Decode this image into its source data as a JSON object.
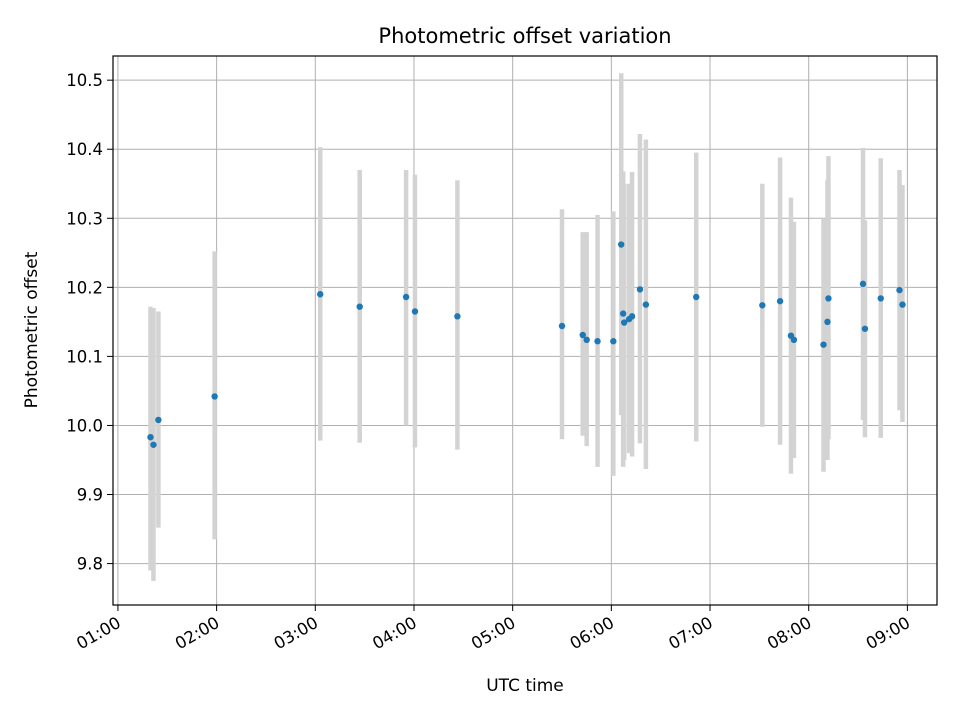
{
  "chart_data": {
    "type": "scatter",
    "title": "Photometric offset variation",
    "xlabel": "UTC time",
    "ylabel": "Photometric offset",
    "x_unit": "hours UTC",
    "xlim": [
      0.95,
      9.3
    ],
    "ylim": [
      9.74,
      10.535
    ],
    "x_ticks": [
      {
        "value": 1,
        "label": "01:00"
      },
      {
        "value": 2,
        "label": "02:00"
      },
      {
        "value": 3,
        "label": "03:00"
      },
      {
        "value": 4,
        "label": "04:00"
      },
      {
        "value": 5,
        "label": "05:00"
      },
      {
        "value": 6,
        "label": "06:00"
      },
      {
        "value": 7,
        "label": "07:00"
      },
      {
        "value": 8,
        "label": "08:00"
      },
      {
        "value": 9,
        "label": "09:00"
      }
    ],
    "y_ticks": [
      {
        "value": 9.8,
        "label": "9.8"
      },
      {
        "value": 9.9,
        "label": "9.9"
      },
      {
        "value": 10.0,
        "label": "10.0"
      },
      {
        "value": 10.1,
        "label": "10.1"
      },
      {
        "value": 10.2,
        "label": "10.2"
      },
      {
        "value": 10.3,
        "label": "10.3"
      },
      {
        "value": 10.4,
        "label": "10.4"
      },
      {
        "value": 10.5,
        "label": "10.5"
      }
    ],
    "grid": true,
    "marker_color": "#1f77b4",
    "errorbar_color": "#d3d3d3",
    "points": [
      {
        "x": 1.33,
        "y": 9.983,
        "lo": 9.79,
        "hi": 10.172
      },
      {
        "x": 1.36,
        "y": 9.972,
        "lo": 9.775,
        "hi": 10.17
      },
      {
        "x": 1.41,
        "y": 10.008,
        "lo": 9.852,
        "hi": 10.165
      },
      {
        "x": 1.98,
        "y": 10.042,
        "lo": 9.835,
        "hi": 10.252
      },
      {
        "x": 3.05,
        "y": 10.19,
        "lo": 9.978,
        "hi": 10.403
      },
      {
        "x": 3.45,
        "y": 10.172,
        "lo": 9.975,
        "hi": 10.37
      },
      {
        "x": 3.92,
        "y": 10.186,
        "lo": 10.0,
        "hi": 10.37
      },
      {
        "x": 4.01,
        "y": 10.165,
        "lo": 9.968,
        "hi": 10.363
      },
      {
        "x": 4.44,
        "y": 10.158,
        "lo": 9.965,
        "hi": 10.355
      },
      {
        "x": 5.5,
        "y": 10.144,
        "lo": 9.98,
        "hi": 10.313
      },
      {
        "x": 5.71,
        "y": 10.131,
        "lo": 9.985,
        "hi": 10.28
      },
      {
        "x": 5.75,
        "y": 10.124,
        "lo": 9.97,
        "hi": 10.28
      },
      {
        "x": 5.86,
        "y": 10.122,
        "lo": 9.94,
        "hi": 10.305
      },
      {
        "x": 6.02,
        "y": 10.122,
        "lo": 9.927,
        "hi": 10.31
      },
      {
        "x": 6.1,
        "y": 10.262,
        "lo": 10.015,
        "hi": 10.51
      },
      {
        "x": 6.12,
        "y": 10.162,
        "lo": 9.94,
        "hi": 10.368
      },
      {
        "x": 6.13,
        "y": 10.149,
        "lo": 9.95,
        "hi": 10.35
      },
      {
        "x": 6.18,
        "y": 10.154,
        "lo": 9.96,
        "hi": 10.35
      },
      {
        "x": 6.21,
        "y": 10.158,
        "lo": 9.955,
        "hi": 10.367
      },
      {
        "x": 6.29,
        "y": 10.197,
        "lo": 9.974,
        "hi": 10.422
      },
      {
        "x": 6.35,
        "y": 10.175,
        "lo": 9.937,
        "hi": 10.414
      },
      {
        "x": 6.86,
        "y": 10.186,
        "lo": 9.977,
        "hi": 10.395
      },
      {
        "x": 7.53,
        "y": 10.174,
        "lo": 9.998,
        "hi": 10.35
      },
      {
        "x": 7.71,
        "y": 10.18,
        "lo": 9.972,
        "hi": 10.388
      },
      {
        "x": 7.82,
        "y": 10.13,
        "lo": 9.93,
        "hi": 10.33
      },
      {
        "x": 7.85,
        "y": 10.124,
        "lo": 9.953,
        "hi": 10.295
      },
      {
        "x": 8.15,
        "y": 10.117,
        "lo": 9.933,
        "hi": 10.3
      },
      {
        "x": 8.19,
        "y": 10.15,
        "lo": 9.95,
        "hi": 10.355
      },
      {
        "x": 8.2,
        "y": 10.184,
        "lo": 9.98,
        "hi": 10.39
      },
      {
        "x": 8.55,
        "y": 10.205,
        "lo": 10.008,
        "hi": 10.402
      },
      {
        "x": 8.57,
        "y": 10.14,
        "lo": 9.983,
        "hi": 10.297
      },
      {
        "x": 8.73,
        "y": 10.184,
        "lo": 9.982,
        "hi": 10.387
      },
      {
        "x": 8.92,
        "y": 10.196,
        "lo": 10.022,
        "hi": 10.37
      },
      {
        "x": 8.95,
        "y": 10.175,
        "lo": 10.005,
        "hi": 10.348
      }
    ]
  }
}
